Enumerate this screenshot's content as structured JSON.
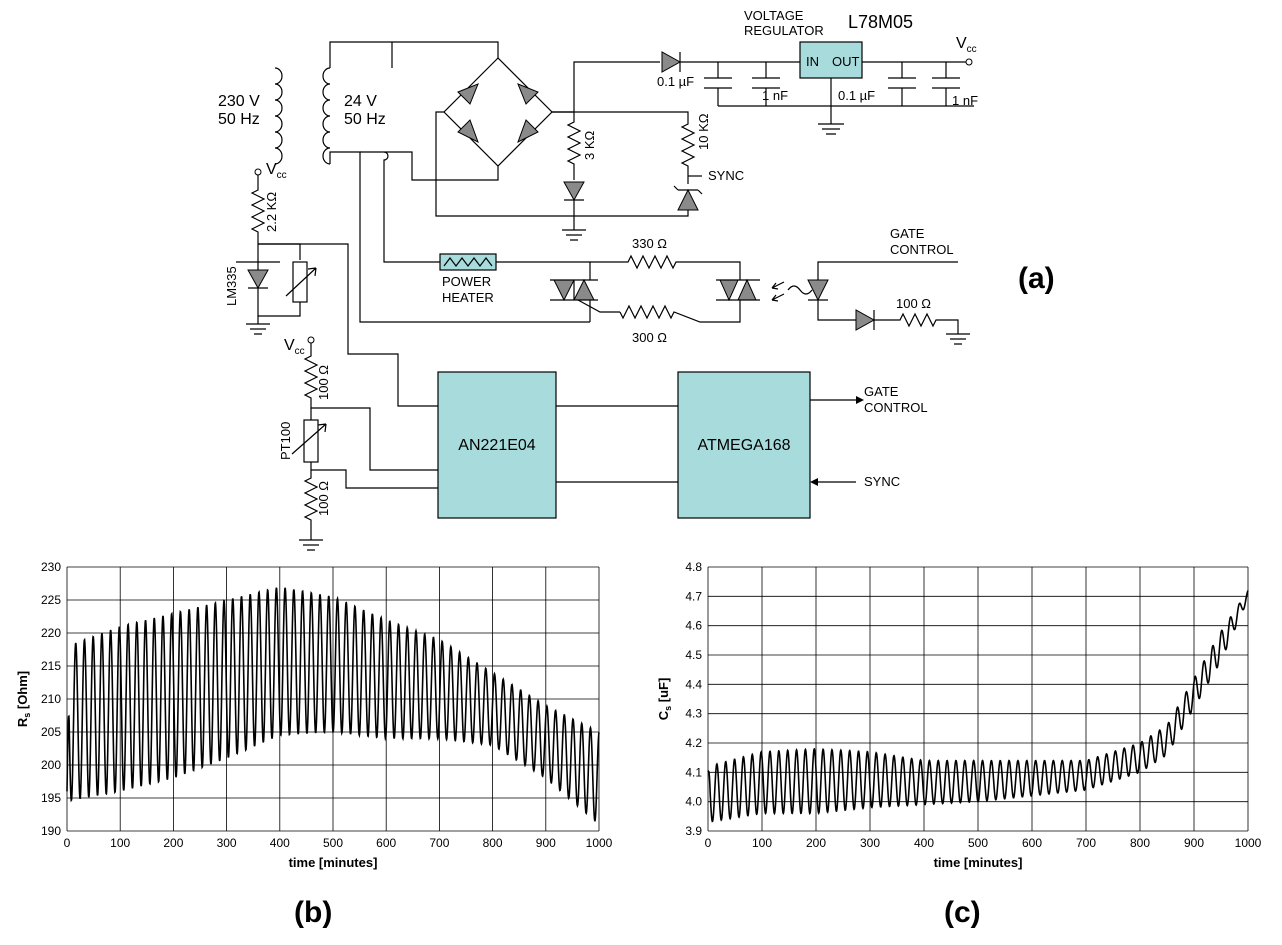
{
  "schematic": {
    "regulator_caption_1": "VOLTAGE",
    "regulator_caption_2": "REGULATOR",
    "regulator_name": "L78M05",
    "reg_in": "IN",
    "reg_out": "OUT",
    "vcc": "V",
    "vcc_sub": "cc",
    "cap_01uf_a": "0.1 µF",
    "cap_1nf_a": "1 nF",
    "cap_01uf_b": "0.1 µF",
    "cap_1nf_b": "1 nF",
    "primary_v": "230 V",
    "primary_hz": "50 Hz",
    "secondary_v": "24 V",
    "secondary_hz": "50 Hz",
    "r_3k": "3 KΩ",
    "r_10k": "10 KΩ",
    "sync": "SYNC",
    "r_2k2": "2.2 KΩ",
    "lm335": "LM335",
    "power_heater_1": "POWER",
    "power_heater_2": "HEATER",
    "r_330": "330 Ω",
    "r_300": "300 Ω",
    "gate_control_1": "GATE",
    "gate_control_2": "CONTROL",
    "r_100_gate": "100 Ω",
    "r_100_top": "100 Ω",
    "r_100_bot": "100 Ω",
    "pt100": "PT100",
    "an221": "AN221E04",
    "atmega": "ATMEGA168",
    "out_gate_1": "GATE",
    "out_gate_2": "CONTROL",
    "in_sync": "SYNC",
    "panel_a": "(a)"
  },
  "panel_b": "(b)",
  "panel_c": "(c)",
  "chart_data": [
    {
      "type": "line",
      "xlabel": "time [minutes]",
      "ylabel": "R",
      "ylabel_sub": "s",
      "ylabel_unit": " [Ohm]",
      "xlim": [
        0,
        1000
      ],
      "ylim": [
        190,
        230
      ],
      "xticks": [
        0,
        100,
        200,
        300,
        400,
        500,
        600,
        700,
        800,
        900,
        1000
      ],
      "yticks": [
        190,
        195,
        200,
        205,
        210,
        215,
        220,
        225,
        230
      ],
      "grid": true,
      "oscillation": {
        "period_minutes": 16.4,
        "start_value": 196,
        "maxima": [
          [
            0,
            218
          ],
          [
            100,
            221
          ],
          [
            200,
            223
          ],
          [
            300,
            225
          ],
          [
            400,
            227
          ],
          [
            500,
            225.5
          ],
          [
            600,
            222
          ],
          [
            700,
            219
          ],
          [
            800,
            214
          ],
          [
            900,
            209
          ],
          [
            1000,
            205
          ]
        ],
        "minima": [
          [
            0,
            194.5
          ],
          [
            100,
            196
          ],
          [
            200,
            198
          ],
          [
            300,
            201
          ],
          [
            400,
            204.5
          ],
          [
            500,
            205
          ],
          [
            600,
            204
          ],
          [
            700,
            204
          ],
          [
            800,
            203
          ],
          [
            900,
            198
          ],
          [
            1000,
            191
          ]
        ]
      }
    },
    {
      "type": "line",
      "xlabel": "time [minutes]",
      "ylabel": "C",
      "ylabel_sub": "s",
      "ylabel_unit": " [uF]",
      "xlim": [
        0,
        1000
      ],
      "ylim": [
        3.9,
        4.8
      ],
      "xticks": [
        0,
        100,
        200,
        300,
        400,
        500,
        600,
        700,
        800,
        900,
        1000
      ],
      "yticks": [
        "3.9",
        "4.0",
        "4.1",
        "4.2",
        "4.3",
        "4.4",
        "4.5",
        "4.6",
        "4.7",
        "4.8"
      ],
      "grid": true,
      "oscillation": {
        "period_minutes": 16.4,
        "start_value": 4.1,
        "maxima": [
          [
            0,
            4.12
          ],
          [
            100,
            4.17
          ],
          [
            200,
            4.18
          ],
          [
            300,
            4.17
          ],
          [
            400,
            4.14
          ],
          [
            500,
            4.14
          ],
          [
            600,
            4.14
          ],
          [
            700,
            4.14
          ],
          [
            800,
            4.2
          ],
          [
            850,
            4.26
          ],
          [
            900,
            4.42
          ],
          [
            950,
            4.58
          ],
          [
            1000,
            4.72
          ]
        ],
        "minima": [
          [
            0,
            3.93
          ],
          [
            100,
            3.96
          ],
          [
            200,
            3.96
          ],
          [
            300,
            3.98
          ],
          [
            400,
            3.99
          ],
          [
            500,
            4.0
          ],
          [
            600,
            4.02
          ],
          [
            700,
            4.04
          ],
          [
            800,
            4.1
          ],
          [
            850,
            4.16
          ],
          [
            900,
            4.32
          ],
          [
            950,
            4.48
          ],
          [
            1000,
            4.69
          ]
        ]
      }
    }
  ]
}
